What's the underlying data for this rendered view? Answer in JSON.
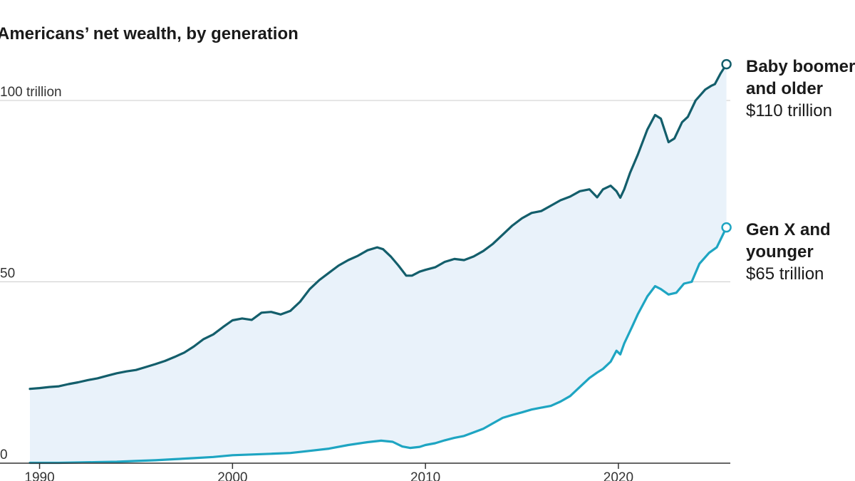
{
  "chart_data": {
    "type": "area",
    "title": "Americans’ net wealth, by generation",
    "xlabel": "",
    "ylabel": "",
    "xlim": [
      1989.5,
      2025.8
    ],
    "ylim": [
      0,
      100
    ],
    "y_ticks": [
      {
        "value": 0,
        "label": "0"
      },
      {
        "value": 50,
        "label": "50"
      },
      {
        "value": 100,
        "label": "100 trillion"
      }
    ],
    "x_ticks": [
      {
        "value": 1990,
        "label": "1990"
      },
      {
        "value": 2000,
        "label": "2000"
      },
      {
        "value": 2010,
        "label": "2010"
      },
      {
        "value": 2020,
        "label": "2020"
      }
    ],
    "grid": true,
    "colors": {
      "fill": "#e9f2fa",
      "grid": "#cccccc",
      "axis": "#333333"
    },
    "series": [
      {
        "name": "Baby boomer and older",
        "label_lines": [
          "Baby boomer",
          "and older"
        ],
        "value_label": "$110 trillion",
        "color": "#135e6b",
        "x": [
          1989.5,
          1990.0,
          1990.5,
          1991.0,
          1991.5,
          1992.0,
          1992.5,
          1993.0,
          1993.5,
          1994.0,
          1994.5,
          1995.0,
          1995.5,
          1996.0,
          1996.5,
          1997.0,
          1997.5,
          1998.0,
          1998.5,
          1999.0,
          1999.5,
          2000.0,
          2000.5,
          2001.0,
          2001.5,
          2002.0,
          2002.5,
          2003.0,
          2003.5,
          2004.0,
          2004.5,
          2005.0,
          2005.5,
          2006.0,
          2006.5,
          2007.0,
          2007.5,
          2007.8,
          2008.2,
          2008.6,
          2009.0,
          2009.3,
          2009.7,
          2010.0,
          2010.5,
          2011.0,
          2011.5,
          2012.0,
          2012.5,
          2013.0,
          2013.5,
          2014.0,
          2014.5,
          2015.0,
          2015.5,
          2016.0,
          2016.5,
          2017.0,
          2017.5,
          2018.0,
          2018.5,
          2018.9,
          2019.2,
          2019.6,
          2019.9,
          2020.1,
          2020.3,
          2020.6,
          2021.0,
          2021.5,
          2021.9,
          2022.2,
          2022.6,
          2022.9,
          2023.3,
          2023.6,
          2024.0,
          2024.5,
          2024.8,
          2025.0,
          2025.3,
          2025.6
        ],
        "values": [
          20.5,
          20.7,
          21.0,
          21.2,
          21.8,
          22.3,
          22.9,
          23.4,
          24.1,
          24.8,
          25.3,
          25.7,
          26.5,
          27.3,
          28.2,
          29.3,
          30.5,
          32.2,
          34.2,
          35.5,
          37.5,
          39.4,
          39.9,
          39.5,
          41.5,
          41.7,
          41.0,
          42.0,
          44.5,
          48.0,
          50.5,
          52.5,
          54.5,
          56.0,
          57.2,
          58.7,
          59.5,
          59.0,
          57.0,
          54.5,
          51.7,
          51.7,
          52.8,
          53.3,
          54.0,
          55.5,
          56.3,
          56.0,
          57.0,
          58.5,
          60.5,
          63.0,
          65.5,
          67.5,
          69.0,
          69.5,
          71.0,
          72.5,
          73.5,
          75.0,
          75.5,
          73.3,
          75.5,
          76.5,
          75.0,
          73.2,
          75.5,
          80.0,
          85.0,
          92.0,
          96.0,
          95.0,
          88.5,
          89.5,
          94.0,
          95.5,
          100.0,
          103.0,
          104.0,
          104.5,
          107.5,
          110.0
        ]
      },
      {
        "name": "Gen X and younger",
        "label_lines": [
          "Gen X and",
          "younger"
        ],
        "value_label": "$65 trillion",
        "color": "#1ea5c2",
        "x": [
          1989.5,
          1990.0,
          1991.0,
          1992.0,
          1993.0,
          1994.0,
          1995.0,
          1996.0,
          1997.0,
          1998.0,
          1999.0,
          2000.0,
          2001.0,
          2002.0,
          2003.0,
          2004.0,
          2005.0,
          2006.0,
          2007.0,
          2007.7,
          2008.3,
          2008.8,
          2009.2,
          2009.7,
          2010.0,
          2010.5,
          2011.0,
          2011.5,
          2012.0,
          2012.5,
          2013.0,
          2013.5,
          2014.0,
          2014.5,
          2015.0,
          2015.5,
          2016.0,
          2016.5,
          2017.0,
          2017.5,
          2018.0,
          2018.5,
          2018.9,
          2019.2,
          2019.6,
          2019.9,
          2020.1,
          2020.3,
          2020.7,
          2021.0,
          2021.5,
          2021.9,
          2022.2,
          2022.6,
          2023.0,
          2023.4,
          2023.8,
          2024.2,
          2024.7,
          2025.1,
          2025.6
        ],
        "values": [
          0.1,
          0.1,
          0.1,
          0.2,
          0.3,
          0.4,
          0.6,
          0.8,
          1.1,
          1.4,
          1.7,
          2.2,
          2.4,
          2.6,
          2.8,
          3.4,
          4.0,
          5.0,
          5.8,
          6.2,
          5.9,
          4.6,
          4.2,
          4.5,
          5.0,
          5.5,
          6.3,
          7.0,
          7.5,
          8.5,
          9.5,
          11.0,
          12.5,
          13.3,
          14.0,
          14.8,
          15.3,
          15.8,
          17.0,
          18.5,
          21.0,
          23.5,
          25.0,
          26.0,
          28.0,
          31.0,
          30.0,
          33.0,
          37.5,
          41.0,
          46.0,
          48.8,
          48.0,
          46.5,
          47.0,
          49.5,
          50.0,
          55.0,
          58.0,
          59.5,
          65.0
        ]
      }
    ]
  }
}
